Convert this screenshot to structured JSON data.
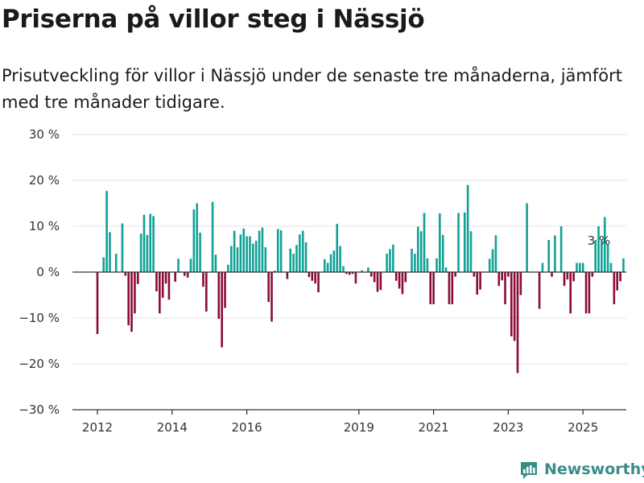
{
  "header": {
    "title": "Priserna på villor steg i Nässjö",
    "subtitle": "Prisutveckling för villor i Nässjö under de senaste tre månaderna, jämfört med tre månader tidigare."
  },
  "brand": {
    "name": "Newsworthy",
    "icon": "newsworthy-logo-icon",
    "color": "#3a8c87"
  },
  "colors": {
    "positive": "#11a196",
    "negative": "#8b0a3a",
    "grid": "#e3e3e3",
    "axis": "#333333"
  },
  "chart_data": {
    "type": "bar",
    "ylim": [
      -30,
      30
    ],
    "yticks": [
      30,
      20,
      10,
      0,
      -10,
      -20,
      -30
    ],
    "ytick_labels": [
      "30 %",
      "20 %",
      "10 %",
      "0 %",
      "−10 %",
      "−20 %",
      "−30 %"
    ],
    "xticks": [
      2012,
      2014,
      2016,
      2019,
      2021,
      2023,
      2025
    ],
    "xtick_labels": [
      "2012",
      "2014",
      "2016",
      "2019",
      "2021",
      "2023",
      "2025"
    ],
    "annotation": {
      "text": "3 %"
    },
    "series": [
      {
        "x_start": "2012-01",
        "frequency": "monthly",
        "values": [
          -13.5,
          0,
          3.2,
          17.7,
          8.7,
          0,
          4.0,
          0,
          10.6,
          -0.8,
          -11.6,
          -13.0,
          -9.0,
          -2.6,
          8.4,
          12.5,
          8.1,
          12.7,
          12.2,
          -4.2,
          -9.0,
          -5.6,
          -2.5,
          -6.0,
          0,
          -2.1,
          2.9,
          0,
          -0.8,
          -1.2,
          2.9,
          13.7,
          15.0,
          8.6,
          -3.2,
          -8.6,
          0,
          15.3,
          3.8,
          -10.2,
          -16.4,
          -7.8,
          1.6,
          5.7,
          9.0,
          5.4,
          8.2,
          9.5,
          7.8,
          7.8,
          6.2,
          6.8,
          9.0,
          9.7,
          5.4,
          -6.5,
          -10.8,
          0.3,
          9.4,
          9.1,
          0,
          -1.5,
          5.1,
          4.0,
          5.9,
          8.2,
          9.0,
          6.5,
          -1.1,
          -1.9,
          -2.5,
          -4.4,
          0,
          2.8,
          2.0,
          3.9,
          4.7,
          10.5,
          5.7,
          1.3,
          -0.4,
          -0.6,
          -0.4,
          -2.5,
          0,
          0.4,
          0,
          1.0,
          -1.0,
          -2.2,
          -4.3,
          -3.9,
          0,
          4.0,
          5.0,
          6.0,
          -1.9,
          -3.6,
          -4.8,
          -2.2,
          0,
          5.1,
          4.0,
          9.9,
          8.9,
          12.9,
          3.0,
          -7.0,
          -7.0,
          3.0,
          12.8,
          8.1,
          1.0,
          -7.0,
          -7.0,
          -1.0,
          12.9,
          0,
          13.0,
          19.0,
          8.9,
          -1.0,
          -4.9,
          -3.8,
          0,
          0,
          2.9,
          5.0,
          8.0,
          -3.0,
          -1.8,
          -7.0,
          -1.0,
          -14.0,
          -15.0,
          -22.0,
          -5.0,
          0,
          15.0,
          0,
          0,
          0,
          -8.0,
          2.0,
          0,
          7.0,
          -1.0,
          8.0,
          0,
          10.0,
          -3.0,
          -1.6,
          -9.0,
          -2.0,
          2.0,
          2.0,
          2.0,
          -9.0,
          -9.0,
          -1.0,
          7.0,
          10.0,
          7.0,
          12.0,
          6.0,
          2.0,
          -7.0,
          -4.0,
          -2.0,
          3.0
        ]
      }
    ]
  }
}
